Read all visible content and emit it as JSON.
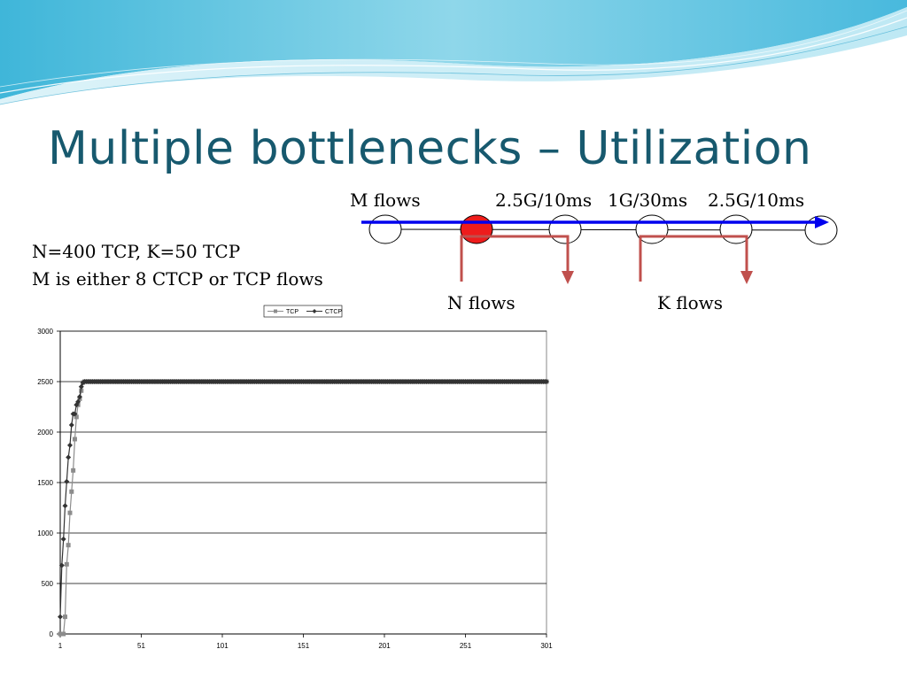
{
  "slide": {
    "title": "Multiple bottlenecks – Utilization",
    "notes": [
      "N=400 TCP, K=50 TCP",
      "M is either 8 CTCP or TCP flows"
    ],
    "accent_color": "#17596e"
  },
  "diagram": {
    "m_flows_label": "M flows",
    "link_labels": [
      "2.5G/10ms",
      "1G/30ms",
      "2.5G/10ms"
    ],
    "n_flows_label": "N flows",
    "k_flows_label": "K flows",
    "main_flow_color": "#0000ee",
    "cross_flow_color": "#c0504d",
    "congested_node_color": "#ee1c1c"
  },
  "chart_data": {
    "type": "line",
    "title": "",
    "xlabel": "",
    "ylabel": "",
    "xlim": [
      1,
      301
    ],
    "ylim": [
      0,
      3000
    ],
    "x_ticks": [
      "1",
      "51",
      "101",
      "151",
      "201",
      "251",
      "301"
    ],
    "y_ticks": [
      "0",
      "500",
      "1000",
      "1500",
      "2000",
      "2500",
      "3000"
    ],
    "grid": "horizontal",
    "legend_position": "top-right",
    "series": [
      {
        "name": "TCP",
        "color": "#8c8c8c",
        "marker": "square",
        "points": [
          [
            1,
            0
          ],
          [
            2,
            0
          ],
          [
            3,
            0
          ],
          [
            4,
            170
          ],
          [
            5,
            690
          ],
          [
            6,
            880
          ],
          [
            7,
            1200
          ],
          [
            8,
            1410
          ],
          [
            9,
            1620
          ],
          [
            10,
            1930
          ],
          [
            11,
            2150
          ],
          [
            12,
            2270
          ],
          [
            13,
            2330
          ],
          [
            14,
            2410
          ],
          [
            15,
            2490
          ],
          [
            301,
            2500
          ]
        ]
      },
      {
        "name": "CTCP",
        "color": "#333333",
        "marker": "diamond",
        "points": [
          [
            1,
            170
          ],
          [
            2,
            680
          ],
          [
            3,
            940
          ],
          [
            4,
            1270
          ],
          [
            5,
            1510
          ],
          [
            6,
            1750
          ],
          [
            7,
            1870
          ],
          [
            8,
            2070
          ],
          [
            9,
            2180
          ],
          [
            10,
            2180
          ],
          [
            11,
            2270
          ],
          [
            12,
            2300
          ],
          [
            13,
            2350
          ],
          [
            14,
            2450
          ],
          [
            15,
            2490
          ],
          [
            301,
            2500
          ]
        ]
      }
    ]
  }
}
